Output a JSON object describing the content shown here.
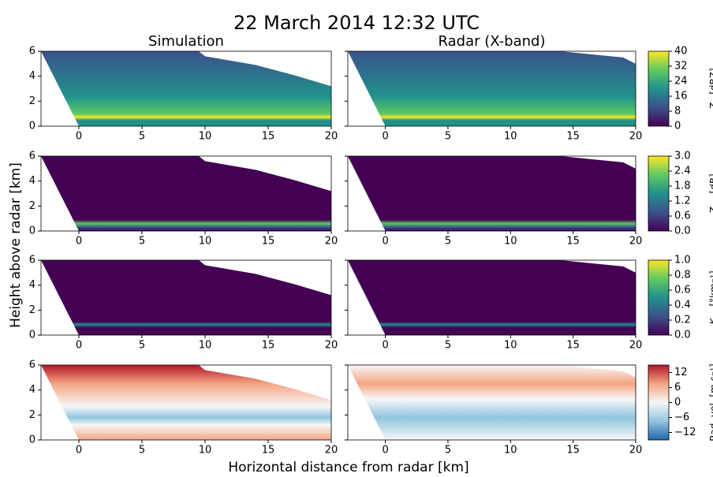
{
  "figure": {
    "title": "22 March 2014 12:32 UTC",
    "xlabel": "Horizontal distance from radar [km]",
    "ylabel": "Height above radar [km]"
  },
  "chart_data": [
    {
      "type": "heatmap",
      "title": "Simulation",
      "xlim": [
        -3,
        20
      ],
      "xticks": [
        0,
        5,
        10,
        15,
        20
      ],
      "ylim": [
        0,
        6
      ],
      "yticks": [
        0,
        2,
        4,
        6
      ],
      "colorbar": 0
    },
    {
      "type": "heatmap",
      "title": "Radar (X-band)",
      "xlim": [
        -3,
        20
      ],
      "xticks": [
        0,
        5,
        10,
        15,
        20
      ],
      "ylim": [
        0,
        6
      ],
      "yticks": [
        0,
        2,
        4,
        6
      ],
      "colorbar": 0
    },
    {
      "type": "heatmap",
      "xlim": [
        -3,
        20
      ],
      "xticks": [
        0,
        5,
        10,
        15,
        20
      ],
      "ylim": [
        0,
        6
      ],
      "yticks": [
        0,
        2,
        4,
        6
      ],
      "colorbar": 1
    },
    {
      "type": "heatmap",
      "xlim": [
        -3,
        20
      ],
      "xticks": [
        0,
        5,
        10,
        15,
        20
      ],
      "ylim": [
        0,
        6
      ],
      "yticks": [
        0,
        2,
        4,
        6
      ],
      "colorbar": 1
    },
    {
      "type": "heatmap",
      "xlim": [
        -3,
        20
      ],
      "xticks": [
        0,
        5,
        10,
        15,
        20
      ],
      "ylim": [
        0,
        6
      ],
      "yticks": [
        0,
        2,
        4,
        6
      ],
      "colorbar": 2
    },
    {
      "type": "heatmap",
      "xlim": [
        -3,
        20
      ],
      "xticks": [
        0,
        5,
        10,
        15,
        20
      ],
      "ylim": [
        0,
        6
      ],
      "yticks": [
        0,
        2,
        4,
        6
      ],
      "colorbar": 2
    },
    {
      "type": "heatmap",
      "xlim": [
        -3,
        20
      ],
      "xticks": [
        0,
        5,
        10,
        15,
        20
      ],
      "ylim": [
        0,
        6
      ],
      "yticks": [
        0,
        2,
        4,
        6
      ],
      "colorbar": 3
    },
    {
      "type": "heatmap",
      "xlim": [
        -3,
        20
      ],
      "xticks": [
        0,
        5,
        10,
        15,
        20
      ],
      "ylim": [
        0,
        6
      ],
      "yticks": [
        0,
        2,
        4,
        6
      ],
      "colorbar": 3
    }
  ],
  "colorbars": [
    {
      "symbol": "Z",
      "subscript": "H",
      "unit": " [dBZ]",
      "lim": [
        0,
        40
      ],
      "ticks": [
        0,
        8,
        16,
        24,
        32,
        40
      ],
      "colors": [
        "#440154",
        "#3b528b",
        "#21918c",
        "#5ec962",
        "#fde725"
      ]
    },
    {
      "symbol": "Z",
      "subscript": "DR",
      "unit": " [dB]",
      "lim": [
        0,
        3
      ],
      "ticks": [
        {
          "value": 0,
          "label": "0.0"
        },
        {
          "value": 0.6,
          "label": "0.6"
        },
        {
          "value": 1.2,
          "label": "1.2"
        },
        {
          "value": 1.8,
          "label": "1.8"
        },
        {
          "value": 2.4,
          "label": "2.4"
        },
        {
          "value": 3,
          "label": "3.0"
        }
      ],
      "colors": [
        "#440154",
        "#3b528b",
        "#21918c",
        "#5ec962",
        "#fde725"
      ]
    },
    {
      "symbol": "K",
      "subscript": "dp",
      "unit": " [°km⁻¹]",
      "lim": [
        0,
        1
      ],
      "ticks": [
        {
          "value": 0,
          "label": "0.0"
        },
        {
          "value": 0.2,
          "label": "0.2"
        },
        {
          "value": 0.4,
          "label": "0.4"
        },
        {
          "value": 0.6,
          "label": "0.6"
        },
        {
          "value": 0.8,
          "label": "0.8"
        },
        {
          "value": 1,
          "label": "1.0"
        }
      ],
      "colors": [
        "#440154",
        "#3b528b",
        "#21918c",
        "#5ec962",
        "#fde725"
      ]
    },
    {
      "symbol": "Rad. vel. [m s⁻¹]",
      "lim": [
        -15,
        15
      ],
      "ticks": [
        {
          "value": -12,
          "label": "−12"
        },
        {
          "value": -6,
          "label": "−6"
        },
        0,
        6,
        12
      ],
      "colors": [
        "#2166ac",
        "#92c5de",
        "#f7f7f7",
        "#f4a582",
        "#b2182b"
      ]
    }
  ]
}
